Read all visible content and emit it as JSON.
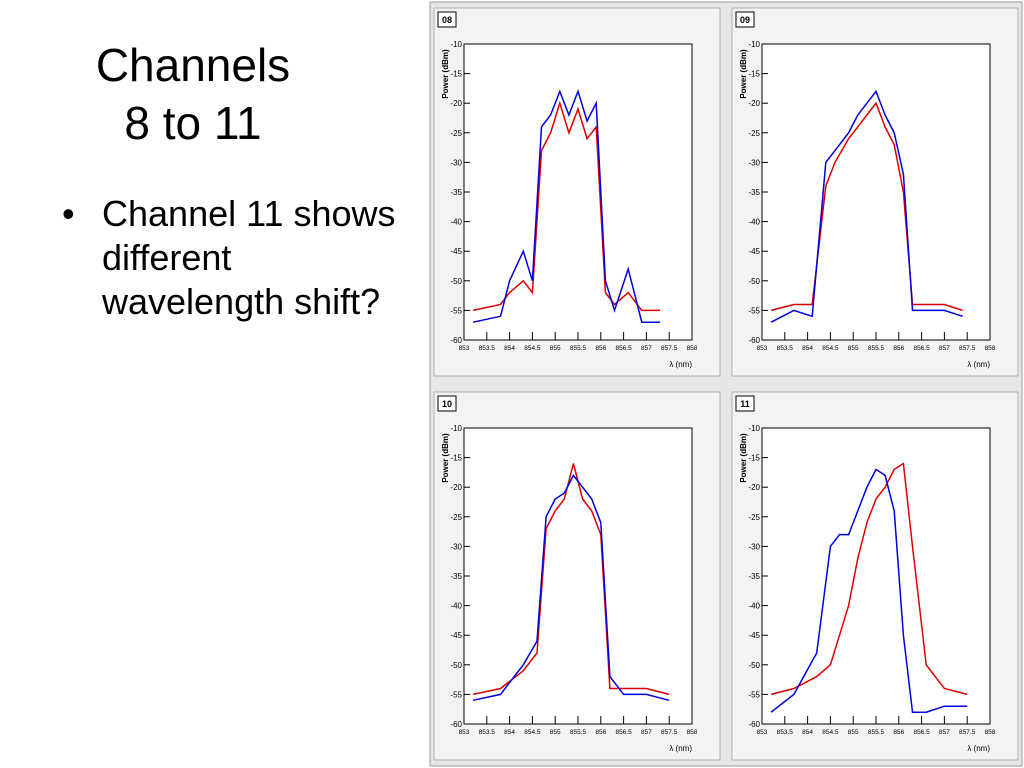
{
  "slide": {
    "title_line1": "Channels",
    "title_line2": "8 to 11",
    "bullets": [
      "Channel 11 shows different wavelength shift?"
    ]
  },
  "chart_data": [
    {
      "type": "line",
      "panel_label": "08",
      "xlabel": "λ (nm)",
      "ylabel": "Power (dBm)",
      "xlim": [
        853,
        858
      ],
      "ylim": [
        -60,
        -10
      ],
      "x_ticks": [
        "853",
        "853.5",
        "854",
        "854.5",
        "855",
        "855.5",
        "856",
        "856.5",
        "857",
        "857.5",
        "858"
      ],
      "y_ticks": [
        "-10",
        "-15",
        "-20",
        "-25",
        "-30",
        "-35",
        "-40",
        "-45",
        "-50",
        "-55",
        "-60"
      ],
      "series": [
        {
          "color": "#0000dd",
          "x": [
            853.2,
            853.8,
            854.0,
            854.3,
            854.5,
            854.7,
            854.9,
            855.1,
            855.3,
            855.5,
            855.7,
            855.9,
            856.1,
            856.3,
            856.6,
            856.9,
            857.3
          ],
          "y": [
            -57,
            -56,
            -50,
            -45,
            -50,
            -24,
            -22,
            -18,
            -22,
            -18,
            -23,
            -20,
            -50,
            -55,
            -48,
            -57,
            -57
          ]
        },
        {
          "color": "#dd0000",
          "x": [
            853.2,
            853.8,
            854.0,
            854.3,
            854.5,
            854.7,
            854.9,
            855.1,
            855.3,
            855.5,
            855.7,
            855.9,
            856.1,
            856.3,
            856.6,
            856.9,
            857.3
          ],
          "y": [
            -55,
            -54,
            -52,
            -50,
            -52,
            -28,
            -25,
            -20,
            -25,
            -21,
            -26,
            -24,
            -52,
            -54,
            -52,
            -55,
            -55
          ]
        }
      ]
    },
    {
      "type": "line",
      "panel_label": "09",
      "xlabel": "λ (nm)",
      "ylabel": "Power (dBm)",
      "xlim": [
        853,
        858
      ],
      "ylim": [
        -60,
        -10
      ],
      "x_ticks": [
        "853",
        "853.5",
        "854",
        "854.5",
        "855",
        "855.5",
        "856",
        "856.5",
        "857",
        "857.5",
        "858"
      ],
      "y_ticks": [
        "-10",
        "-15",
        "-20",
        "-25",
        "-30",
        "-35",
        "-40",
        "-45",
        "-50",
        "-55",
        "-60"
      ],
      "series": [
        {
          "color": "#0000dd",
          "x": [
            853.2,
            853.7,
            854.1,
            854.4,
            854.6,
            854.9,
            855.1,
            855.3,
            855.5,
            855.7,
            855.9,
            856.1,
            856.3,
            856.6,
            857.0,
            857.4
          ],
          "y": [
            -57,
            -55,
            -56,
            -30,
            -28,
            -25,
            -22,
            -20,
            -18,
            -22,
            -25,
            -32,
            -55,
            -55,
            -55,
            -56
          ]
        },
        {
          "color": "#dd0000",
          "x": [
            853.2,
            853.7,
            854.1,
            854.4,
            854.6,
            854.9,
            855.1,
            855.3,
            855.5,
            855.7,
            855.9,
            856.1,
            856.3,
            856.6,
            857.0,
            857.4
          ],
          "y": [
            -55,
            -54,
            -54,
            -34,
            -30,
            -26,
            -24,
            -22,
            -20,
            -24,
            -27,
            -35,
            -54,
            -54,
            -54,
            -55
          ]
        }
      ]
    },
    {
      "type": "line",
      "panel_label": "10",
      "xlabel": "λ (nm)",
      "ylabel": "Power (dBm)",
      "xlim": [
        853,
        858
      ],
      "ylim": [
        -60,
        -10
      ],
      "x_ticks": [
        "853",
        "853.5",
        "854",
        "854.5",
        "855",
        "855.5",
        "856",
        "856.5",
        "857",
        "857.5",
        "858"
      ],
      "y_ticks": [
        "-10",
        "-15",
        "-20",
        "-25",
        "-30",
        "-35",
        "-40",
        "-45",
        "-50",
        "-55",
        "-60"
      ],
      "series": [
        {
          "color": "#0000dd",
          "x": [
            853.2,
            853.8,
            854.3,
            854.6,
            854.8,
            855.0,
            855.2,
            855.4,
            855.6,
            855.8,
            856.0,
            856.2,
            856.5,
            857.0,
            857.5
          ],
          "y": [
            -56,
            -55,
            -50,
            -46,
            -25,
            -22,
            -21,
            -18,
            -20,
            -22,
            -26,
            -52,
            -55,
            -55,
            -56
          ]
        },
        {
          "color": "#dd0000",
          "x": [
            853.2,
            853.8,
            854.3,
            854.6,
            854.8,
            855.0,
            855.2,
            855.4,
            855.6,
            855.8,
            856.0,
            856.2,
            856.5,
            857.0,
            857.5
          ],
          "y": [
            -55,
            -54,
            -51,
            -48,
            -27,
            -24,
            -22,
            -16,
            -22,
            -24,
            -28,
            -54,
            -54,
            -54,
            -55
          ]
        }
      ]
    },
    {
      "type": "line",
      "panel_label": "11",
      "xlabel": "λ (nm)",
      "ylabel": "Power (dBm)",
      "xlim": [
        853,
        858
      ],
      "ylim": [
        -60,
        -10
      ],
      "x_ticks": [
        "853",
        "853.5",
        "854",
        "854.5",
        "855",
        "855.5",
        "856",
        "856.5",
        "857",
        "857.5",
        "858"
      ],
      "y_ticks": [
        "-10",
        "-15",
        "-20",
        "-25",
        "-30",
        "-35",
        "-40",
        "-45",
        "-50",
        "-55",
        "-60"
      ],
      "series": [
        {
          "color": "#0000dd",
          "x": [
            853.2,
            853.7,
            854.2,
            854.5,
            854.7,
            854.9,
            855.1,
            855.3,
            855.5,
            855.7,
            855.9,
            856.1,
            856.3,
            856.6,
            857.0,
            857.5
          ],
          "y": [
            -58,
            -55,
            -48,
            -30,
            -28,
            -28,
            -24,
            -20,
            -17,
            -18,
            -24,
            -45,
            -58,
            -58,
            -57,
            -57
          ]
        },
        {
          "color": "#dd0000",
          "x": [
            853.2,
            853.7,
            854.2,
            854.5,
            854.7,
            854.9,
            855.1,
            855.3,
            855.5,
            855.7,
            855.9,
            856.1,
            856.3,
            856.6,
            857.0,
            857.5
          ],
          "y": [
            -55,
            -54,
            -52,
            -50,
            -45,
            -40,
            -32,
            -26,
            -22,
            -20,
            -17,
            -16,
            -30,
            -50,
            -54,
            -55
          ]
        }
      ]
    }
  ]
}
